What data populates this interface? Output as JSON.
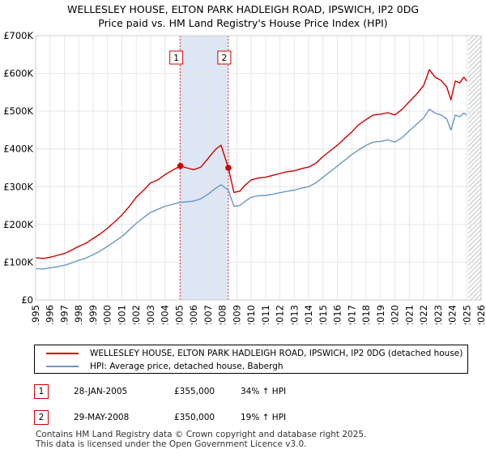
{
  "title": {
    "line1": "WELLESLEY HOUSE, ELTON PARK HADLEIGH ROAD, IPSWICH, IP2 0DG",
    "line2": "Price paid vs. HM Land Registry's House Price Index (HPI)"
  },
  "colors": {
    "property": "#cc0000",
    "hpi": "#6b96c8",
    "shade": "#dde6f5",
    "grid": "#e6e6e6",
    "hatch": "#999999"
  },
  "chart_data": {
    "type": "line",
    "title": "WELLESLEY HOUSE, ELTON PARK HADLEIGH ROAD, IPSWICH, IP2 0DG",
    "subtitle": "Price paid vs. HM Land Registry's House Price Index (HPI)",
    "xlabel": "",
    "ylabel": "",
    "xlim": [
      1995,
      2026
    ],
    "ylim": [
      0,
      700000
    ],
    "grid": true,
    "x_ticks": [
      "1995",
      "1996",
      "1997",
      "1998",
      "1999",
      "2000",
      "2001",
      "2002",
      "2003",
      "2004",
      "2005",
      "2006",
      "2007",
      "2008",
      "2009",
      "2010",
      "2011",
      "2012",
      "2013",
      "2014",
      "2015",
      "2016",
      "2017",
      "2018",
      "2019",
      "2020",
      "2021",
      "2022",
      "2023",
      "2024",
      "2025",
      "2026"
    ],
    "y_ticks": [
      {
        "value": 0,
        "label": "£0"
      },
      {
        "value": 100000,
        "label": "£100K"
      },
      {
        "value": 200000,
        "label": "£200K"
      },
      {
        "value": 300000,
        "label": "£300K"
      },
      {
        "value": 400000,
        "label": "£400K"
      },
      {
        "value": 500000,
        "label": "£500K"
      },
      {
        "value": 600000,
        "label": "£600K"
      },
      {
        "value": 700000,
        "label": "£700K"
      }
    ],
    "shaded_span": {
      "from": 2005.07,
      "to": 2008.41
    },
    "future_hatch_from": 2025.1,
    "series": [
      {
        "name": "WELLESLEY HOUSE, ELTON PARK HADLEIGH ROAD, IPSWICH, IP2 0DG (detached house)",
        "color": "#cc0000",
        "x": [
          1995.0,
          1995.5,
          1996.0,
          1996.5,
          1997.0,
          1997.5,
          1998.0,
          1998.5,
          1999.0,
          1999.5,
          2000.0,
          2000.5,
          2001.0,
          2001.5,
          2002.0,
          2002.5,
          2003.0,
          2003.5,
          2004.0,
          2004.5,
          2005.07,
          2005.5,
          2006.0,
          2006.5,
          2007.0,
          2007.5,
          2007.9,
          2008.41,
          2008.8,
          2009.2,
          2009.6,
          2010.0,
          2010.5,
          2011.0,
          2011.5,
          2012.0,
          2012.5,
          2013.0,
          2013.5,
          2014.0,
          2014.5,
          2015.0,
          2015.5,
          2016.0,
          2016.5,
          2017.0,
          2017.5,
          2018.0,
          2018.5,
          2019.0,
          2019.5,
          2020.0,
          2020.5,
          2021.0,
          2021.5,
          2022.0,
          2022.4,
          2022.8,
          2023.2,
          2023.6,
          2023.9,
          2024.2,
          2024.5,
          2024.8,
          2025.0
        ],
        "values": [
          112000,
          110000,
          113000,
          118000,
          123000,
          132000,
          142000,
          150000,
          163000,
          175000,
          190000,
          207000,
          225000,
          247000,
          272000,
          290000,
          310000,
          318000,
          332000,
          343000,
          355000,
          350000,
          345000,
          352000,
          375000,
          398000,
          410000,
          350000,
          285000,
          288000,
          305000,
          318000,
          323000,
          325000,
          330000,
          335000,
          340000,
          342000,
          348000,
          352000,
          362000,
          380000,
          395000,
          410000,
          428000,
          445000,
          465000,
          478000,
          490000,
          492000,
          496000,
          490000,
          505000,
          525000,
          545000,
          568000,
          610000,
          590000,
          582000,
          565000,
          530000,
          580000,
          575000,
          590000,
          580000
        ]
      },
      {
        "name": "HPI: Average price, detached house, Babergh",
        "color": "#6b96c8",
        "x": [
          1995.0,
          1995.5,
          1996.0,
          1996.5,
          1997.0,
          1997.5,
          1998.0,
          1998.5,
          1999.0,
          1999.5,
          2000.0,
          2000.5,
          2001.0,
          2001.5,
          2002.0,
          2002.5,
          2003.0,
          2003.5,
          2004.0,
          2004.5,
          2005.0,
          2005.5,
          2006.0,
          2006.5,
          2007.0,
          2007.5,
          2007.9,
          2008.4,
          2008.8,
          2009.2,
          2009.6,
          2010.0,
          2010.5,
          2011.0,
          2011.5,
          2012.0,
          2012.5,
          2013.0,
          2013.5,
          2014.0,
          2014.5,
          2015.0,
          2015.5,
          2016.0,
          2016.5,
          2017.0,
          2017.5,
          2018.0,
          2018.5,
          2019.0,
          2019.5,
          2020.0,
          2020.5,
          2021.0,
          2021.5,
          2022.0,
          2022.4,
          2022.8,
          2023.2,
          2023.6,
          2023.9,
          2024.2,
          2024.5,
          2024.8,
          2025.0
        ],
        "values": [
          83000,
          82000,
          85000,
          88000,
          92000,
          98000,
          105000,
          111000,
          120000,
          130000,
          142000,
          155000,
          168000,
          185000,
          203000,
          218000,
          232000,
          240000,
          248000,
          253000,
          258000,
          260000,
          262000,
          268000,
          280000,
          295000,
          305000,
          292000,
          248000,
          250000,
          262000,
          272000,
          276000,
          277000,
          280000,
          284000,
          288000,
          291000,
          296000,
          300000,
          310000,
          325000,
          340000,
          355000,
          370000,
          385000,
          398000,
          410000,
          418000,
          420000,
          424000,
          418000,
          430000,
          448000,
          465000,
          482000,
          505000,
          495000,
          490000,
          480000,
          450000,
          490000,
          485000,
          495000,
          490000
        ]
      }
    ],
    "sales": [
      {
        "id": "1",
        "date": "28-JAN-2005",
        "x": 2005.07,
        "price": 355000,
        "price_label": "£355,000",
        "hpi": "34% ↑ HPI"
      },
      {
        "id": "2",
        "date": "29-MAY-2008",
        "x": 2008.41,
        "price": 350000,
        "price_label": "£350,000",
        "hpi": "19% ↑ HPI"
      }
    ]
  },
  "legend": {
    "property_label": "WELLESLEY HOUSE, ELTON PARK HADLEIGH ROAD, IPSWICH, IP2 0DG (detached house)",
    "hpi_label": "HPI: Average price, detached house, Babergh"
  },
  "footer": {
    "line1": "Contains HM Land Registry data © Crown copyright and database right 2025.",
    "line2": "This data is licensed under the Open Government Licence v3.0."
  }
}
